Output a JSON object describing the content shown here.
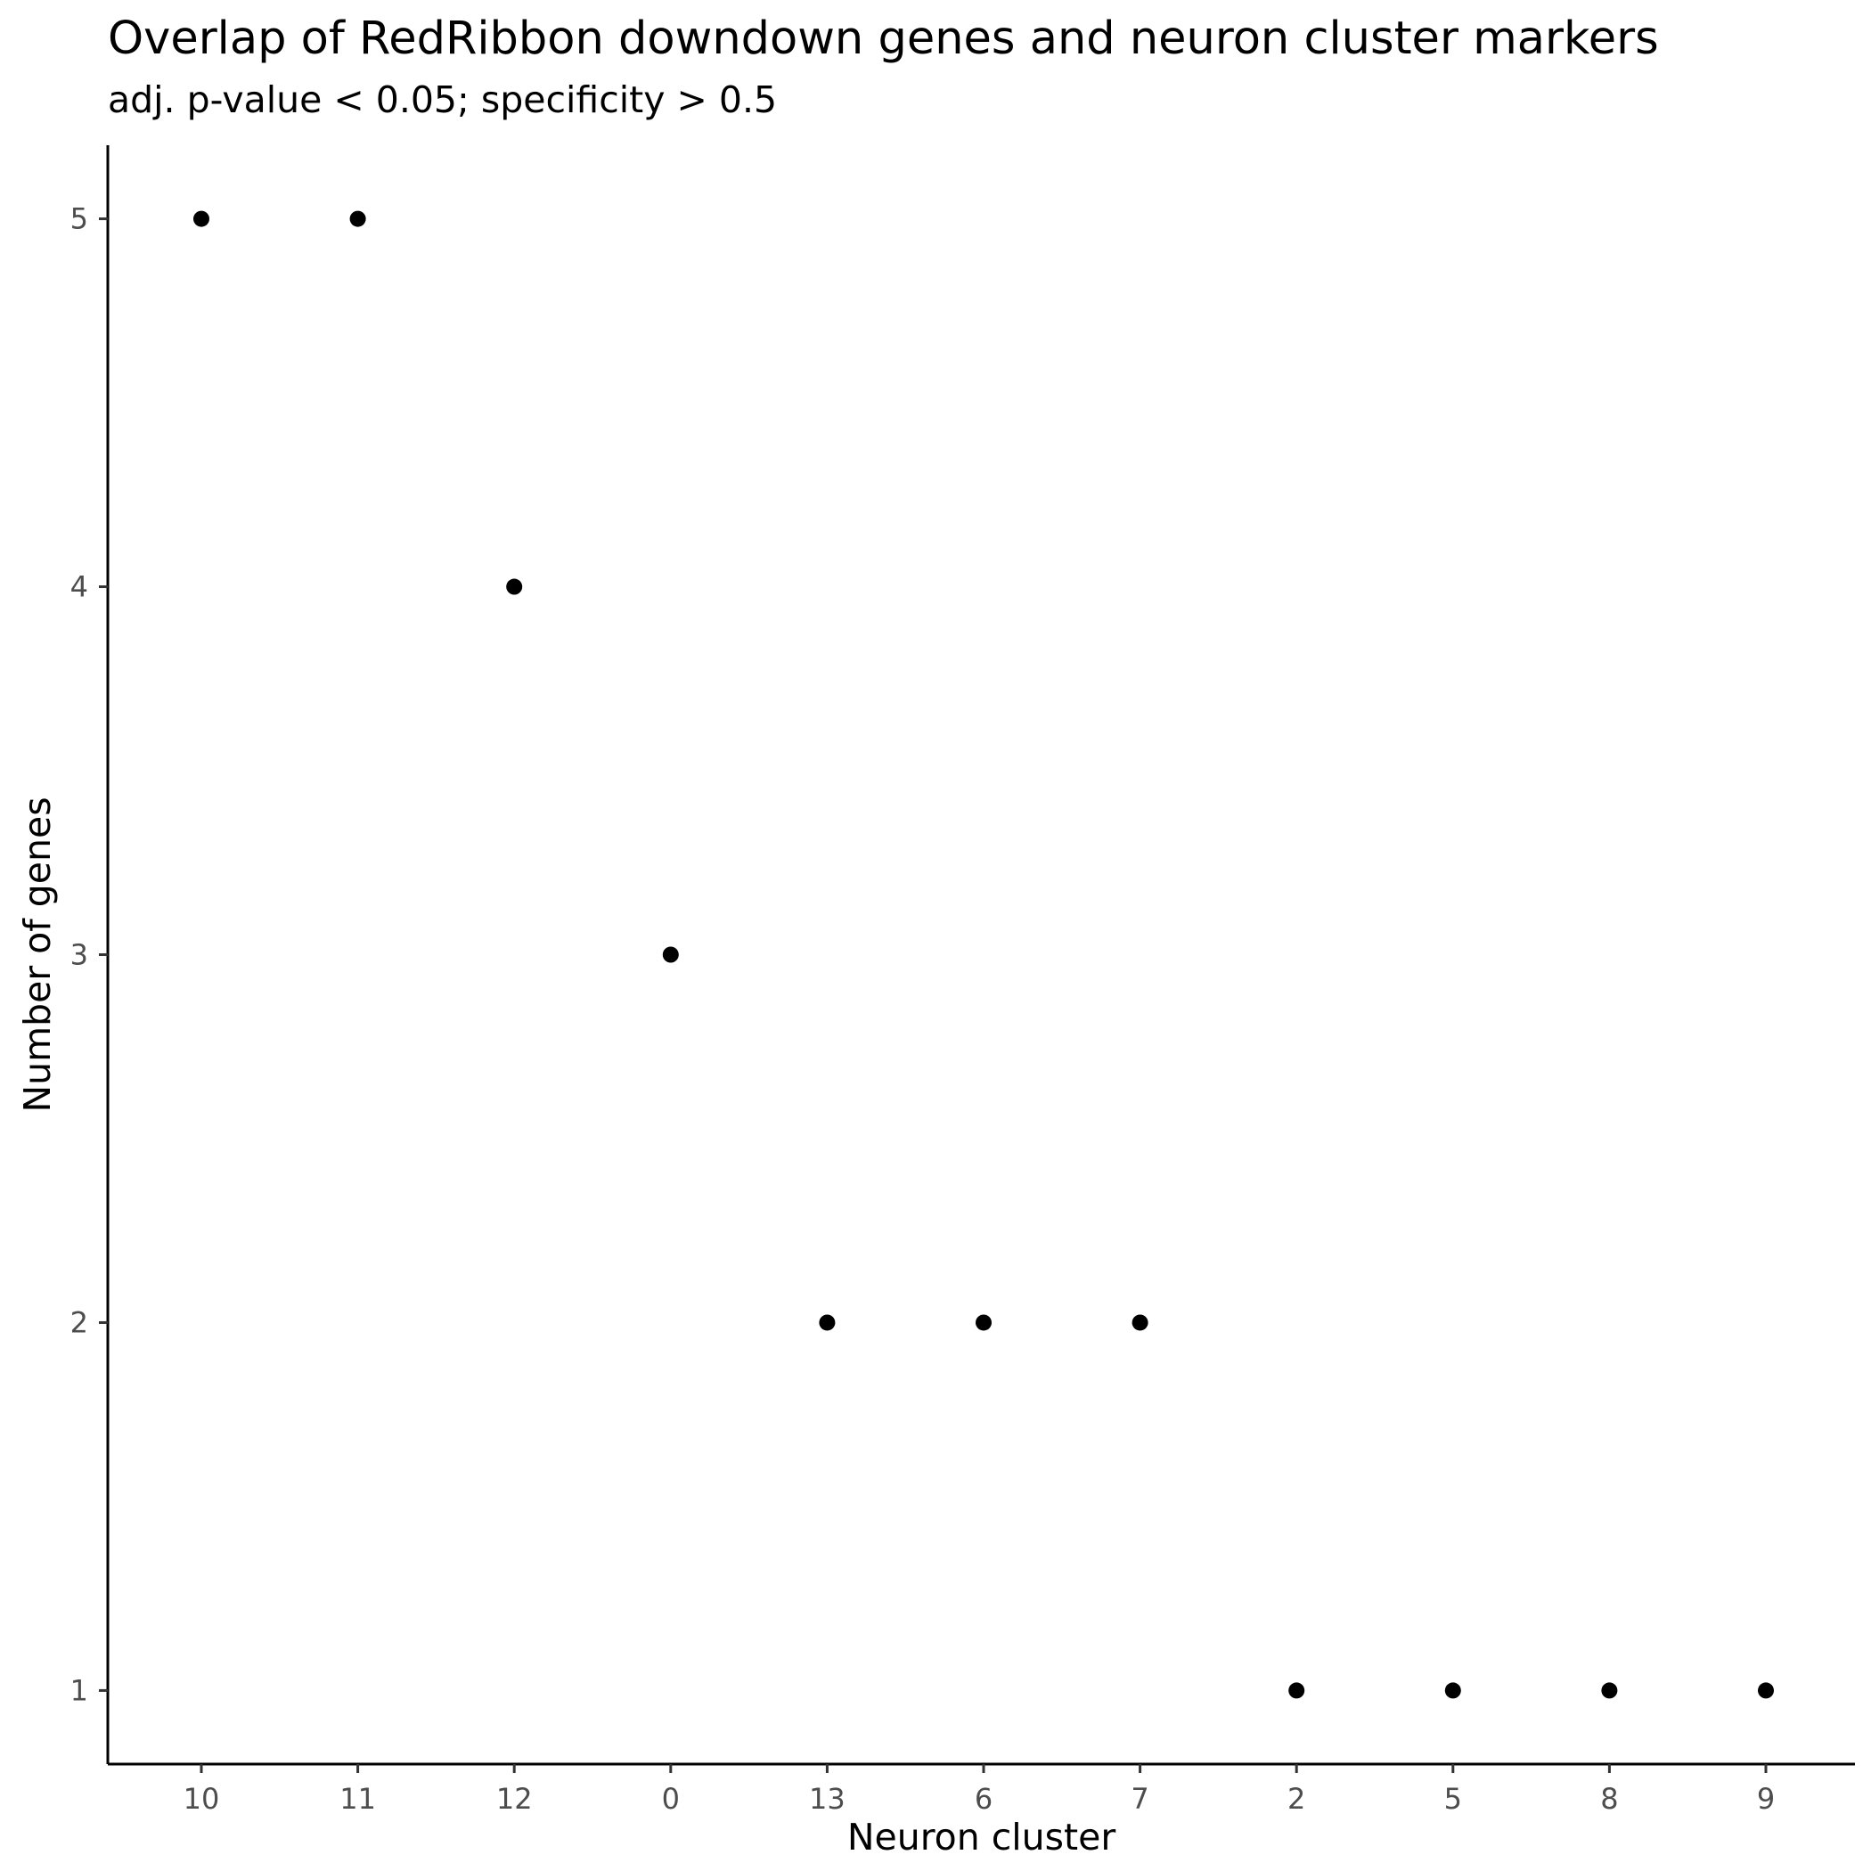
{
  "chart_data": {
    "type": "scatter",
    "title": "Overlap of RedRibbon downdown genes and neuron cluster markers",
    "subtitle": "adj. p-value < 0.05; specificity > 0.5",
    "xlabel": "Neuron cluster",
    "ylabel": "Number of genes",
    "categories": [
      "10",
      "11",
      "12",
      "0",
      "13",
      "6",
      "7",
      "2",
      "5",
      "8",
      "9"
    ],
    "values": [
      5,
      5,
      4,
      3,
      2,
      2,
      2,
      1,
      1,
      1,
      1
    ],
    "yticks": [
      1,
      2,
      3,
      4,
      5
    ],
    "ylim": [
      0.8,
      5.2
    ],
    "grid": false,
    "legend": "none",
    "point_color": "#000000",
    "axis_color": "#000000",
    "tick_label_color": "#4d4d4d"
  }
}
